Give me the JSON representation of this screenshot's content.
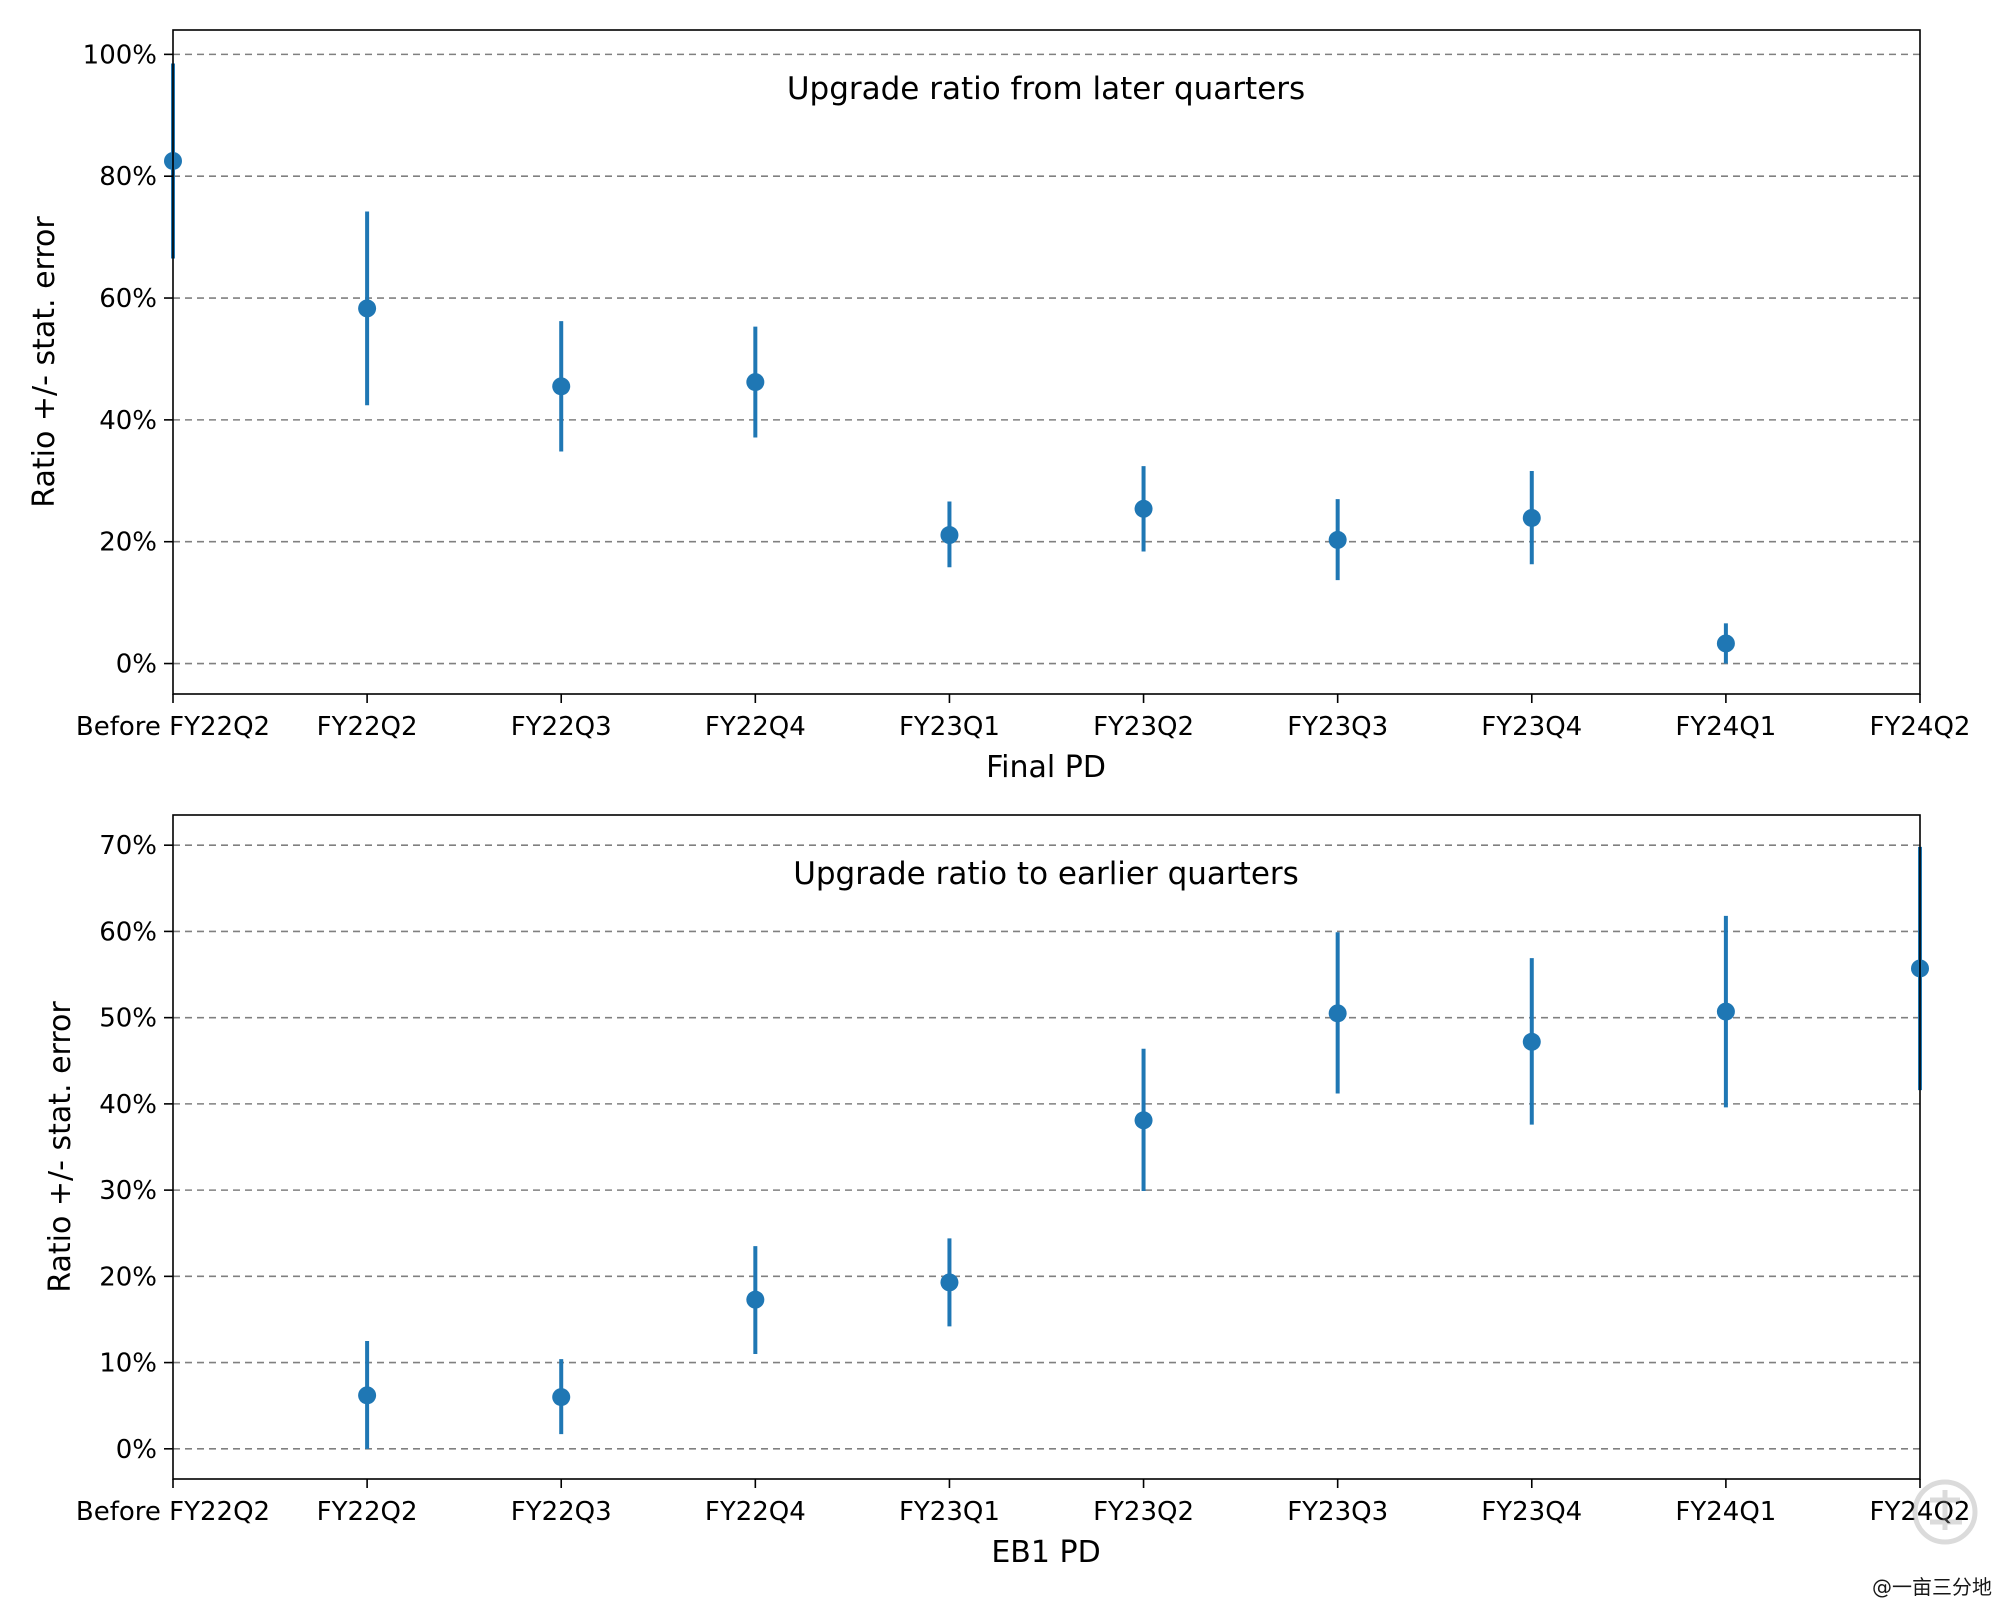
{
  "colors": {
    "marker": "#1f77b4",
    "grid": "#808080"
  },
  "watermark": "@一亩三分地",
  "chart_data": [
    {
      "type": "scatter",
      "subtype": "errorbar",
      "title": "Upgrade ratio from later quarters",
      "xlabel": "Final PD",
      "ylabel": "Ratio +/- stat. error",
      "categories": [
        "Before FY22Q2",
        "FY22Q2",
        "FY22Q3",
        "FY22Q4",
        "FY23Q1",
        "FY23Q2",
        "FY23Q3",
        "FY23Q4",
        "FY24Q1",
        "FY24Q2"
      ],
      "yticks": [
        0,
        20,
        40,
        60,
        80,
        100
      ],
      "ytick_labels": [
        "0%",
        "20%",
        "40%",
        "60%",
        "80%",
        "100%"
      ],
      "ylim": [
        -5,
        104
      ],
      "grid": "horizontal dashed",
      "series": [
        {
          "points": [
            {
              "x": "Before FY22Q2",
              "y": 82.5,
              "low": 66.5,
              "high": 98.5
            },
            {
              "x": "FY22Q2",
              "y": 58.3,
              "low": 42.4,
              "high": 74.2
            },
            {
              "x": "FY22Q3",
              "y": 45.5,
              "low": 34.8,
              "high": 56.2
            },
            {
              "x": "FY22Q4",
              "y": 46.2,
              "low": 37.1,
              "high": 55.3
            },
            {
              "x": "FY23Q1",
              "y": 21.1,
              "low": 15.8,
              "high": 26.6
            },
            {
              "x": "FY23Q2",
              "y": 25.4,
              "low": 18.4,
              "high": 32.4
            },
            {
              "x": "FY23Q3",
              "y": 20.3,
              "low": 13.7,
              "high": 27.0
            },
            {
              "x": "FY23Q4",
              "y": 23.9,
              "low": 16.3,
              "high": 31.6
            },
            {
              "x": "FY24Q1",
              "y": 3.3,
              "low": 0.0,
              "high": 6.6
            }
          ]
        }
      ]
    },
    {
      "type": "scatter",
      "subtype": "errorbar",
      "title": "Upgrade ratio to earlier quarters",
      "xlabel": "EB1 PD",
      "ylabel": "Ratio +/- stat. error",
      "categories": [
        "Before FY22Q2",
        "FY22Q2",
        "FY22Q3",
        "FY22Q4",
        "FY23Q1",
        "FY23Q2",
        "FY23Q3",
        "FY23Q4",
        "FY24Q1",
        "FY24Q2"
      ],
      "yticks": [
        0,
        10,
        20,
        30,
        40,
        50,
        60,
        70
      ],
      "ytick_labels": [
        "0%",
        "10%",
        "20%",
        "30%",
        "40%",
        "50%",
        "60%",
        "70%"
      ],
      "ylim": [
        -3.5,
        73.5
      ],
      "grid": "horizontal dashed",
      "series": [
        {
          "points": [
            {
              "x": "FY22Q2",
              "y": 6.2,
              "low": 0.0,
              "high": 12.5
            },
            {
              "x": "FY22Q3",
              "y": 6.0,
              "low": 1.7,
              "high": 10.4
            },
            {
              "x": "FY22Q4",
              "y": 17.3,
              "low": 11.0,
              "high": 23.5
            },
            {
              "x": "FY23Q1",
              "y": 19.3,
              "low": 14.2,
              "high": 24.4
            },
            {
              "x": "FY23Q2",
              "y": 38.1,
              "low": 29.9,
              "high": 46.4
            },
            {
              "x": "FY23Q3",
              "y": 50.5,
              "low": 41.2,
              "high": 59.9
            },
            {
              "x": "FY23Q4",
              "y": 47.2,
              "low": 37.6,
              "high": 56.9
            },
            {
              "x": "FY24Q1",
              "y": 50.7,
              "low": 39.6,
              "high": 61.8
            },
            {
              "x": "FY24Q2",
              "y": 55.7,
              "low": 41.6,
              "high": 69.8
            }
          ]
        }
      ]
    }
  ]
}
